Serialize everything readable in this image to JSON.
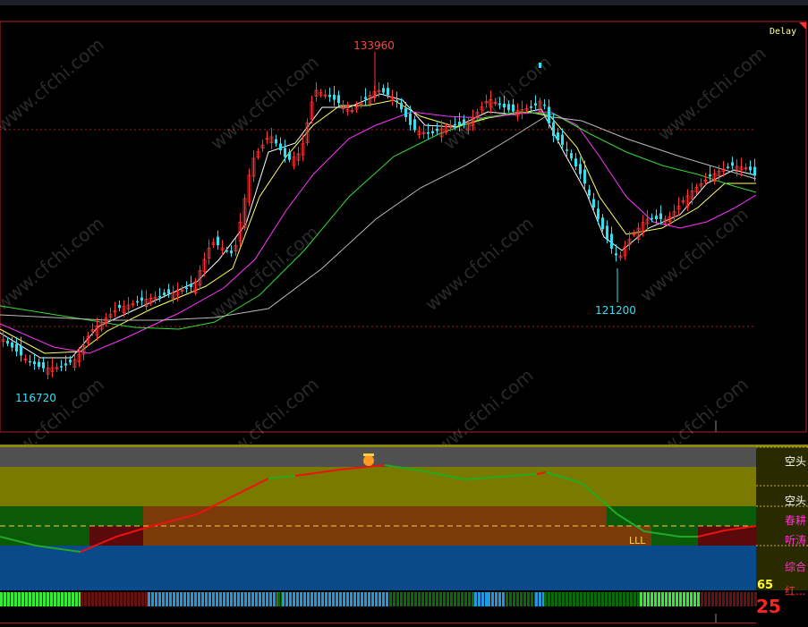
{
  "header": {
    "delay_label": "Delay"
  },
  "main_chart": {
    "high_label": "133960",
    "low_label": "121200",
    "left_low_label": "116720"
  },
  "watermark": "www.cfchi.com",
  "indicator": {
    "marker_label": "LLL",
    "value_yellow": "65",
    "value_red": "25",
    "right_labels": [
      "空头",
      "空头",
      "春耕",
      "听涛",
      "综合",
      "红..."
    ]
  },
  "colors": {
    "up": "#ff3333",
    "down": "#33e0f0",
    "ma5": "#ffffff",
    "ma10": "#ffff66",
    "ma20": "#ff33ff",
    "ma60": "#33dd33",
    "ma120": "#bbbbbb",
    "olive": "#7a7a00",
    "grey": "#505050",
    "dark_green": "#0a5a0a",
    "brown": "#7a3a0a",
    "dark_red": "#5a0a0a",
    "blue": "#0a4a8a"
  }
}
